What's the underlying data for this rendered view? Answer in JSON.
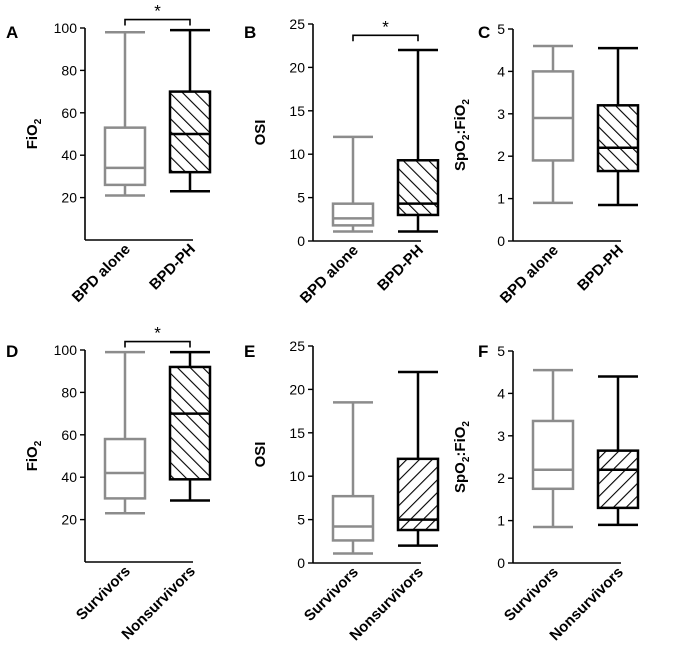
{
  "colors": {
    "gray": "#8c8c8c",
    "black": "#000000"
  },
  "chart_data": [
    {
      "type": "boxplot",
      "panel_label": "A",
      "ylabel_main": "FiO",
      "ylabel_sub": "2",
      "ylabel_tail": "",
      "ylim": [
        0,
        100
      ],
      "yticks": [
        20,
        40,
        60,
        80,
        100
      ],
      "categories": [
        "BPD alone",
        "BPD-PH"
      ],
      "boxes": [
        {
          "min": 21,
          "q1": 26,
          "median": 34,
          "q3": 53,
          "max": 98,
          "color": "gray",
          "hatch": "none"
        },
        {
          "min": 23,
          "q1": 32,
          "median": 50,
          "q3": 70,
          "max": 99,
          "color": "black",
          "hatch": "back"
        }
      ],
      "significance": {
        "label": "*",
        "y": 104
      }
    },
    {
      "type": "boxplot",
      "panel_label": "B",
      "ylabel_main": "OSI",
      "ylabel_sub": "",
      "ylabel_tail": "",
      "ylim": [
        0,
        25
      ],
      "yticks": [
        0,
        5,
        10,
        15,
        20,
        25
      ],
      "categories": [
        "BPD alone",
        "BPD-PH"
      ],
      "boxes": [
        {
          "min": 1.1,
          "q1": 1.8,
          "median": 2.6,
          "q3": 4.3,
          "max": 12,
          "color": "gray",
          "hatch": "none"
        },
        {
          "min": 1.1,
          "q1": 3.0,
          "median": 4.3,
          "q3": 9.3,
          "max": 22,
          "color": "black",
          "hatch": "back"
        }
      ],
      "significance": {
        "label": "*",
        "y": 23.7
      }
    },
    {
      "type": "boxplot",
      "panel_label": "C",
      "ylabel_main": "SpO",
      "ylabel_sub": "2",
      "ylabel_tail": ":FiO",
      "ylabel_sub2": "2",
      "ylim": [
        0,
        5
      ],
      "yticks": [
        0,
        1,
        2,
        3,
        4,
        5
      ],
      "categories": [
        "BPD alone",
        "BPD-PH"
      ],
      "boxes": [
        {
          "min": 0.9,
          "q1": 1.9,
          "median": 2.9,
          "q3": 4.0,
          "max": 4.6,
          "color": "gray",
          "hatch": "none"
        },
        {
          "min": 0.85,
          "q1": 1.65,
          "median": 2.2,
          "q3": 3.2,
          "max": 4.55,
          "color": "black",
          "hatch": "back"
        }
      ],
      "significance": null
    },
    {
      "type": "boxplot",
      "panel_label": "D",
      "ylabel_main": "FiO",
      "ylabel_sub": "2",
      "ylabel_tail": "",
      "ylim": [
        0,
        100
      ],
      "yticks": [
        20,
        40,
        60,
        80,
        100
      ],
      "categories": [
        "Survivors",
        "Nonsurvivors"
      ],
      "boxes": [
        {
          "min": 23,
          "q1": 30,
          "median": 42,
          "q3": 58,
          "max": 99,
          "color": "gray",
          "hatch": "none"
        },
        {
          "min": 29,
          "q1": 39,
          "median": 70,
          "q3": 92,
          "max": 99,
          "color": "black",
          "hatch": "back"
        }
      ],
      "significance": {
        "label": "*",
        "y": 104
      }
    },
    {
      "type": "boxplot",
      "panel_label": "E",
      "ylabel_main": "OSI",
      "ylabel_sub": "",
      "ylabel_tail": "",
      "ylim": [
        0,
        25
      ],
      "yticks": [
        0,
        5,
        10,
        15,
        20,
        25
      ],
      "categories": [
        "Survivors",
        "Nonsurvivors"
      ],
      "boxes": [
        {
          "min": 1.1,
          "q1": 2.6,
          "median": 4.2,
          "q3": 7.7,
          "max": 18.5,
          "color": "gray",
          "hatch": "none"
        },
        {
          "min": 2.0,
          "q1": 3.8,
          "median": 5.0,
          "q3": 12,
          "max": 22,
          "color": "black",
          "hatch": "forward"
        }
      ],
      "significance": null
    },
    {
      "type": "boxplot",
      "panel_label": "F",
      "ylabel_main": "SpO",
      "ylabel_sub": "2",
      "ylabel_tail": ":FiO",
      "ylabel_sub2": "2",
      "ylim": [
        0,
        5
      ],
      "yticks": [
        0,
        1,
        2,
        3,
        4,
        5
      ],
      "categories": [
        "Survivors",
        "Nonsurvivors"
      ],
      "boxes": [
        {
          "min": 0.85,
          "q1": 1.75,
          "median": 2.2,
          "q3": 3.35,
          "max": 4.55,
          "color": "gray",
          "hatch": "none"
        },
        {
          "min": 0.9,
          "q1": 1.3,
          "median": 2.2,
          "q3": 2.65,
          "max": 4.4,
          "color": "black",
          "hatch": "forward"
        }
      ],
      "significance": null
    }
  ]
}
